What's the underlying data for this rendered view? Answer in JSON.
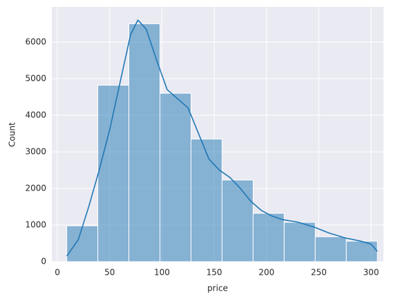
{
  "chart_data": {
    "type": "histogram",
    "xlabel": "price",
    "ylabel": "Count",
    "bins": [
      9,
      38.7,
      68.4,
      98.1,
      127.8,
      157.5,
      187.2,
      216.9,
      246.6,
      276.3,
      306
    ],
    "counts": [
      980,
      4820,
      6500,
      4600,
      3350,
      2230,
      1320,
      1075,
      680,
      560
    ],
    "color": "#1f77b4",
    "kde": {
      "x": [
        9,
        20,
        30,
        40,
        50,
        60,
        70,
        77,
        85,
        95,
        100,
        105,
        115,
        125,
        135,
        145,
        155,
        165,
        175,
        185,
        195,
        205,
        215,
        230,
        245,
        260,
        275,
        290,
        300,
        306
      ],
      "values": [
        150,
        600,
        1500,
        2500,
        3600,
        4900,
        6200,
        6600,
        6350,
        5500,
        5100,
        4700,
        4450,
        4200,
        3500,
        2800,
        2500,
        2300,
        2000,
        1650,
        1400,
        1250,
        1150,
        1080,
        950,
        780,
        650,
        560,
        480,
        280
      ]
    },
    "xlim": [
      -5.3,
      311.8
    ],
    "ylim": [
      0,
      6960
    ],
    "xticks": [
      0,
      50,
      100,
      150,
      200,
      250,
      300
    ],
    "yticks": [
      0,
      1000,
      2000,
      3000,
      4000,
      5000,
      6000
    ],
    "grid": true
  }
}
